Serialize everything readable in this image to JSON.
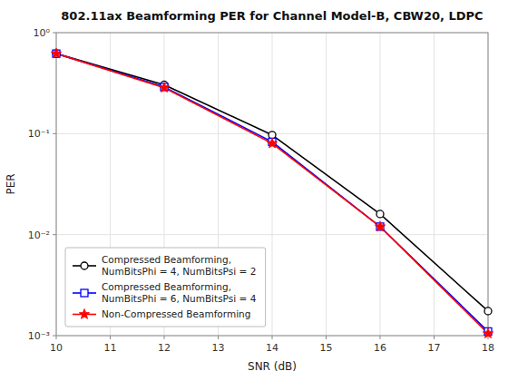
{
  "chart_data": {
    "type": "line",
    "title": "802.11ax Beamforming PER for Channel Model-B, CBW20, LDPC",
    "x_label": "SNR (dB)",
    "y_label": "PER",
    "x": [
      10,
      12,
      14,
      16,
      18
    ],
    "series": [
      {
        "name": "Compressed Beamforming,\nNumBitsPhi = 4, NumBitsPsi = 2",
        "color": "#000000",
        "marker": "circle",
        "values": [
          0.62,
          0.305,
          0.097,
          0.016,
          0.00175
        ]
      },
      {
        "name": "Compressed Beamforming,\nNumBitsPhi = 6, NumBitsPsi = 4",
        "color": "#0000FF",
        "marker": "square",
        "values": [
          0.62,
          0.29,
          0.083,
          0.012,
          0.0011
        ]
      },
      {
        "name": "Non-Compressed Beamforming",
        "color": "#FF0000",
        "marker": "star",
        "values": [
          0.62,
          0.285,
          0.08,
          0.012,
          0.00105
        ]
      }
    ],
    "xlim": [
      10,
      18
    ],
    "xticks": [
      10,
      11,
      12,
      13,
      14,
      15,
      16,
      17,
      18
    ],
    "ylim": [
      0.001,
      1.0
    ],
    "yticks": [
      {
        "value": 0.001,
        "label": "10⁻³"
      },
      {
        "value": 0.01,
        "label": "10⁻²"
      },
      {
        "value": 0.1,
        "label": "10⁻¹"
      },
      {
        "value": 1,
        "label": "10⁰"
      }
    ],
    "log": "y",
    "grid": true,
    "legend": "lower left"
  }
}
